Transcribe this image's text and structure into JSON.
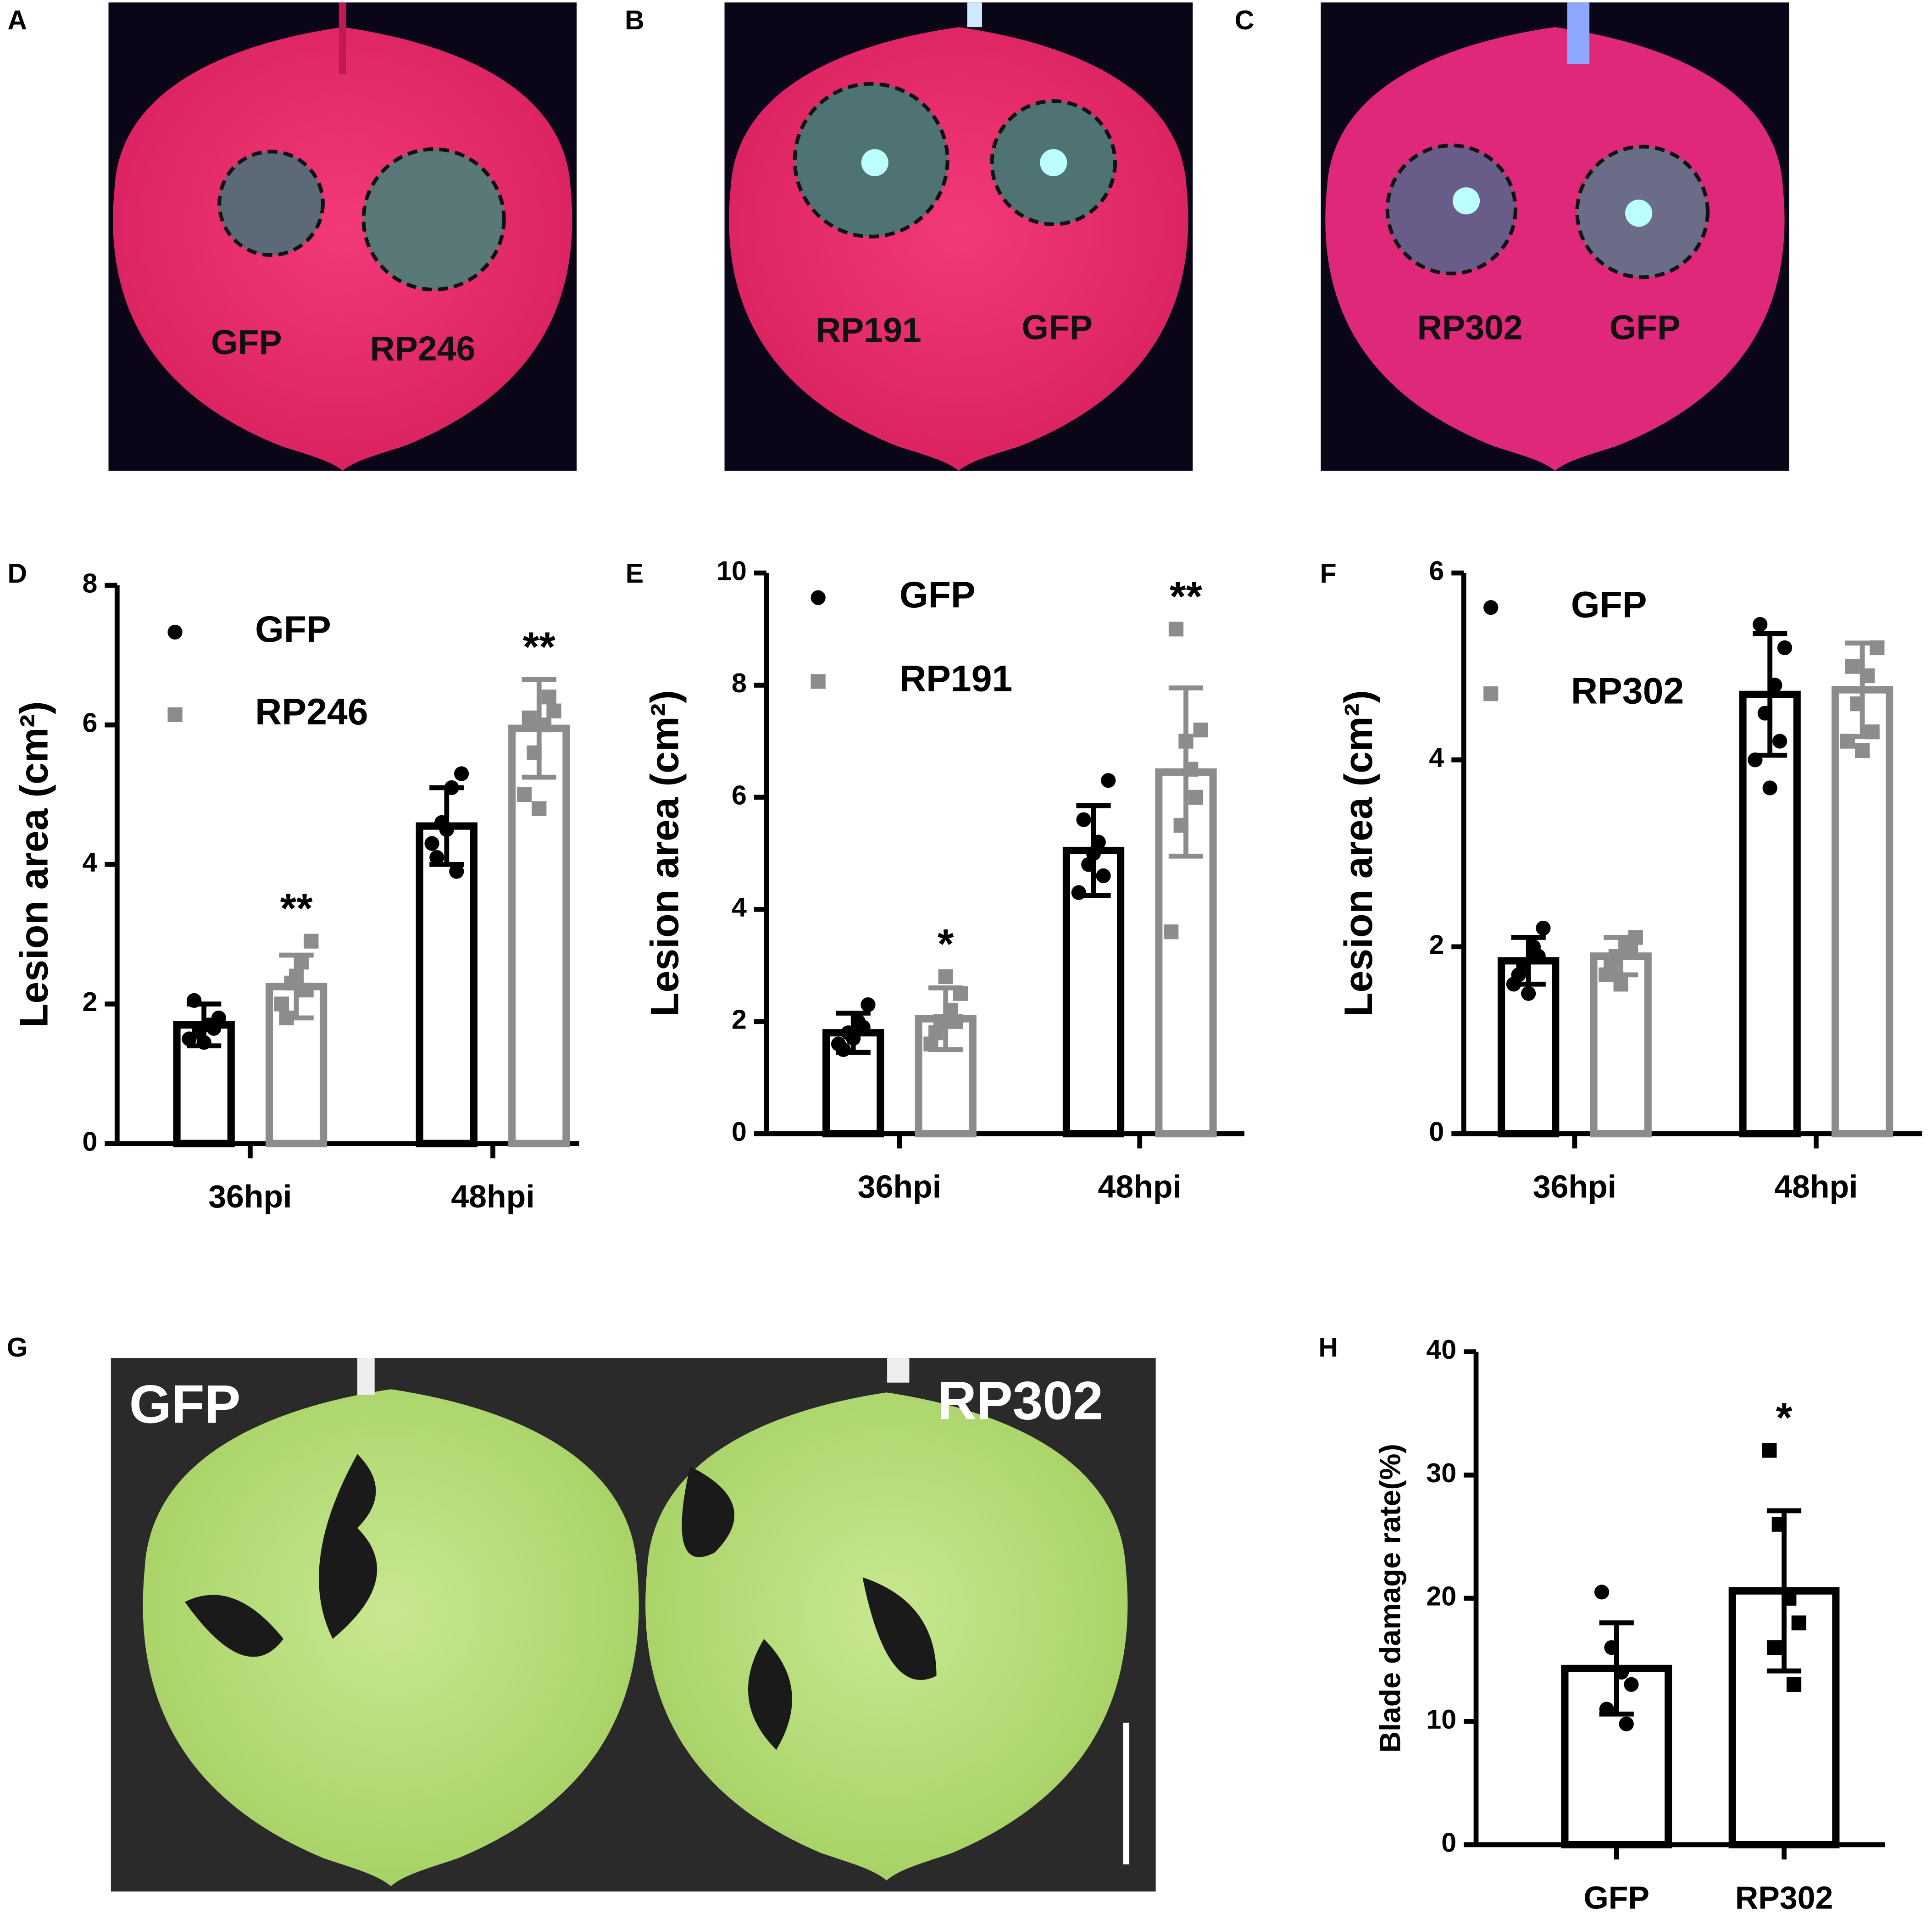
{
  "photos": [
    {
      "panel": "A",
      "labels": [
        "GFP",
        "RP246"
      ]
    },
    {
      "panel": "B",
      "labels": [
        "RP191",
        "GFP"
      ]
    },
    {
      "panel": "C",
      "labels": [
        "RP302",
        "GFP"
      ]
    },
    {
      "panel": "G",
      "labels": [
        "GFP",
        "RP302"
      ]
    }
  ],
  "chart_data": [
    {
      "type": "bar",
      "panel": "D",
      "ylabel": "Lesion area (cm²)",
      "categories": [
        "36hpi",
        "48hpi"
      ],
      "ylim": [
        0,
        8
      ],
      "yticks": [
        0,
        2,
        4,
        6,
        8
      ],
      "grid": false,
      "series": [
        {
          "name": "GFP",
          "color": "#000000",
          "marker": "circle",
          "values": [
            1.7,
            4.55
          ],
          "errors": [
            0.3,
            0.55
          ],
          "points": [
            [
              1.5,
              1.6,
              1.7,
              1.8,
              2.05,
              1.65,
              1.45
            ],
            [
              4.3,
              4.6,
              5.1,
              5.3,
              4.1,
              3.9,
              4.5
            ]
          ],
          "annotations": [
            null,
            null
          ]
        },
        {
          "name": "RP246",
          "color": "#8c8c8c",
          "marker": "square",
          "values": [
            2.25,
            5.95
          ],
          "errors": [
            0.45,
            0.7
          ],
          "points": [
            [
              2.0,
              2.3,
              2.6,
              2.9,
              1.8,
              2.2,
              2.4
            ],
            [
              5.0,
              5.6,
              6.0,
              6.2,
              6.1,
              6.4,
              4.8
            ]
          ],
          "annotations": [
            "**",
            "**"
          ]
        }
      ]
    },
    {
      "type": "bar",
      "panel": "E",
      "ylabel": "Lesion area (cm²)",
      "categories": [
        "36hpi",
        "48hpi"
      ],
      "ylim": [
        0,
        10
      ],
      "yticks": [
        0,
        2,
        4,
        6,
        8,
        10
      ],
      "grid": false,
      "series": [
        {
          "name": "GFP",
          "color": "#000000",
          "marker": "circle",
          "values": [
            1.8,
            5.05
          ],
          "errors": [
            0.35,
            0.8
          ],
          "points": [
            [
              1.6,
              1.8,
              2.0,
              2.3,
              1.5,
              1.9,
              1.7
            ],
            [
              4.3,
              4.8,
              5.2,
              6.3,
              5.6,
              4.6,
              5.0
            ]
          ],
          "annotations": [
            null,
            null
          ]
        },
        {
          "name": "RP191",
          "color": "#8c8c8c",
          "marker": "square",
          "values": [
            2.05,
            6.45
          ],
          "errors": [
            0.55,
            1.5
          ],
          "points": [
            [
              1.6,
              2.0,
              2.2,
              2.5,
              1.8,
              2.0,
              2.8
            ],
            [
              3.6,
              5.5,
              6.5,
              7.2,
              9.0,
              6.0,
              7.0
            ]
          ],
          "annotations": [
            "*",
            "**"
          ]
        }
      ]
    },
    {
      "type": "bar",
      "panel": "F",
      "ylabel": "Lesion area (cm²)",
      "categories": [
        "36hpi",
        "48hpi"
      ],
      "ylim": [
        0,
        6
      ],
      "yticks": [
        0,
        2,
        4,
        6
      ],
      "grid": false,
      "series": [
        {
          "name": "GFP",
          "color": "#000000",
          "marker": "circle",
          "values": [
            1.85,
            4.7
          ],
          "errors": [
            0.25,
            0.65
          ],
          "points": [
            [
              1.6,
              1.8,
              2.0,
              2.2,
              1.7,
              1.9,
              1.5
            ],
            [
              4.0,
              4.5,
              4.8,
              5.2,
              5.45,
              4.2,
              3.7
            ]
          ],
          "annotations": [
            null,
            null
          ]
        },
        {
          "name": "RP302",
          "color": "#8c8c8c",
          "marker": "square",
          "values": [
            1.9,
            4.75
          ],
          "errors": [
            0.2,
            0.5
          ],
          "points": [
            [
              1.7,
              1.9,
              2.0,
              2.1,
              1.8,
              1.95,
              1.6
            ],
            [
              4.2,
              4.6,
              4.9,
              5.2,
              5.0,
              4.3,
              4.1
            ]
          ],
          "annotations": [
            null,
            null
          ]
        }
      ]
    },
    {
      "type": "bar",
      "panel": "H",
      "ylabel": "Blade damage rate(%)",
      "categories": [
        "GFP",
        "RP302"
      ],
      "ylim": [
        0,
        40
      ],
      "yticks": [
        0,
        10,
        20,
        30,
        40
      ],
      "grid": false,
      "series": [
        {
          "color": "#000000",
          "marker": "mixed",
          "values": [
            14.3,
            20.6
          ],
          "errors": [
            3.7,
            6.5
          ],
          "points": [
            [
              20.5,
              16,
              14,
              13,
              11,
              9.8
            ],
            [
              32,
              26,
              20,
              18,
              16,
              13
            ]
          ],
          "annotations": [
            null,
            "*"
          ]
        }
      ]
    }
  ]
}
